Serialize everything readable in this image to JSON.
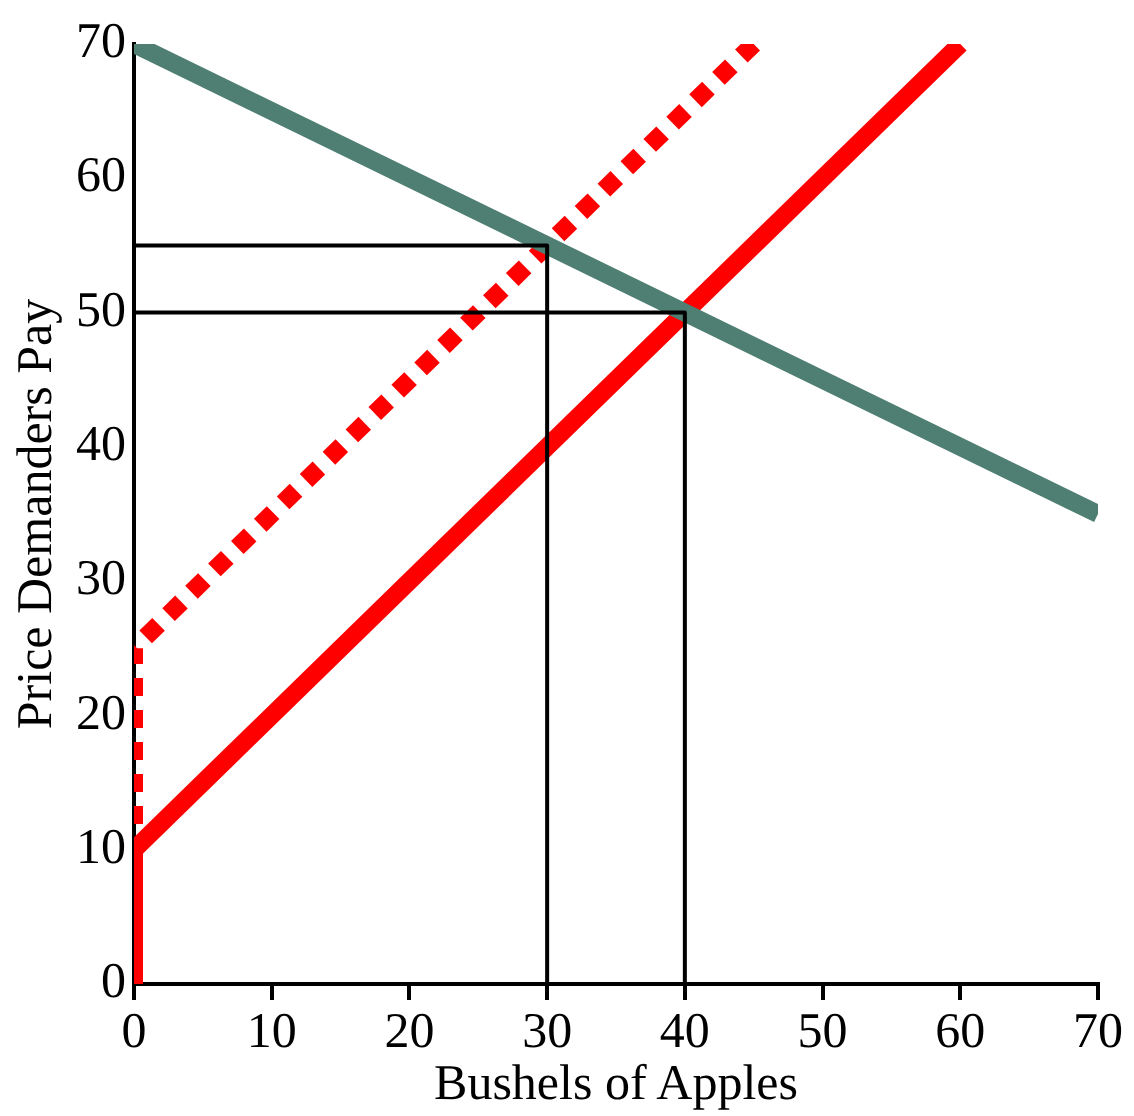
{
  "chart_data": {
    "type": "line",
    "xlabel": "Bushels of Apples",
    "ylabel": "Price Demanders Pay",
    "xlim": [
      0,
      70
    ],
    "ylim": [
      0,
      70
    ],
    "xticks": [
      0,
      10,
      20,
      30,
      40,
      50,
      60,
      70
    ],
    "yticks": [
      0,
      10,
      20,
      30,
      40,
      50,
      60,
      70
    ],
    "grid": false,
    "legend": false,
    "marker": "none",
    "series": [
      {
        "color": "#000000",
        "x": [
          0,
          30,
          30
        ],
        "values": [
          55,
          55,
          0
        ]
      },
      {
        "color": "#000000",
        "x": [
          0,
          40,
          40
        ],
        "values": [
          50,
          50,
          0
        ]
      },
      {
        "color": "#4f7f72",
        "x": [
          0,
          70
        ],
        "values": [
          70,
          35
        ]
      },
      {
        "color": "#ff0000",
        "x": [
          0,
          0,
          60
        ],
        "values": [
          0,
          10,
          70
        ]
      },
      {
        "color": "#ff0000",
        "x": [
          0,
          0,
          45
        ],
        "values": [
          0,
          25,
          70
        ],
        "line_style": "dotted"
      }
    ]
  }
}
